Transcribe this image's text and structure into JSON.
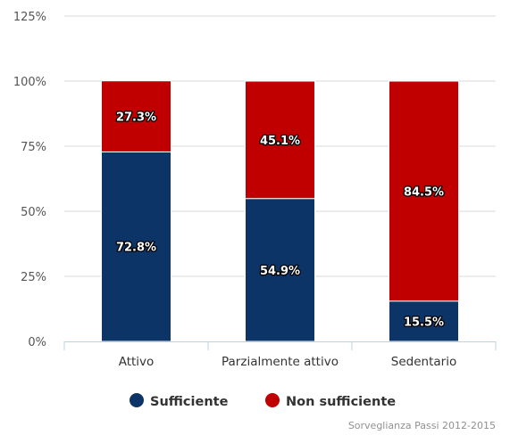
{
  "chart_data": {
    "type": "bar",
    "stacked": true,
    "categories": [
      "Attivo",
      "Parzialmente attivo",
      "Sedentario"
    ],
    "series": [
      {
        "name": "Sufficiente",
        "color": "#0d3466",
        "values": [
          72.8,
          54.9,
          15.5
        ]
      },
      {
        "name": "Non sufficiente",
        "color": "#c00000",
        "values": [
          27.3,
          45.1,
          84.5
        ]
      }
    ],
    "data_labels": [
      [
        "72.8%",
        "54.9%",
        "15.5%"
      ],
      [
        "27.3%",
        "45.1%",
        "84.5%"
      ]
    ],
    "yticks": [
      "0%",
      "25%",
      "50%",
      "75%",
      "100%",
      "125%"
    ],
    "ylim": [
      0,
      125
    ],
    "grid": true,
    "legend_position": "bottom-center",
    "credit": "Sorveglianza Passi 2012-2015"
  }
}
